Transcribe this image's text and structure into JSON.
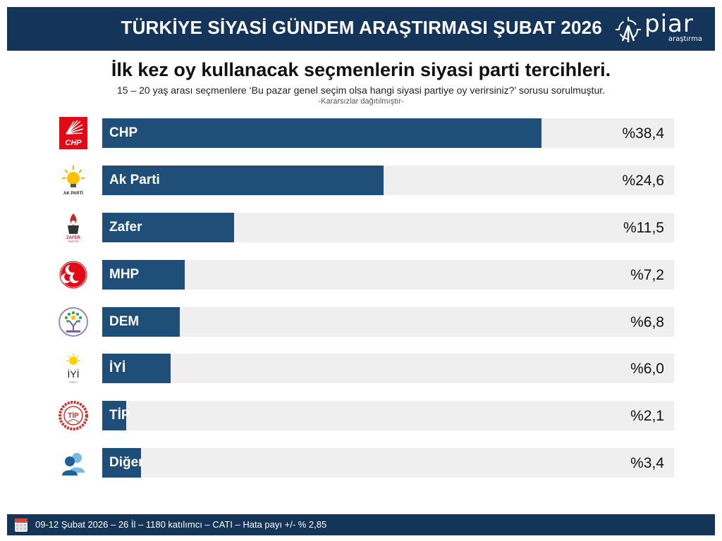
{
  "header": {
    "title": "TÜRKİYE SİYASİ GÜNDEM ARAŞTIRMASI ŞUBAT 2026",
    "logo_text": "piar",
    "logo_sub": "araştırma",
    "background": "#15345a"
  },
  "title": "İlk kez oy kullanacak seçmenlerin siyasi parti tercihleri.",
  "subtitle": "15 – 20 yaş arası seçmenlere ‘Bu pazar genel seçim olsa hangi siyasi partiye oy verirsiniz?’ sorusu sorulmuştur.",
  "note": "-Kararsızlar dağıtılmıştır-",
  "rows": [
    {
      "label": "CHP",
      "value_text": "%38,4",
      "value": 38.4,
      "logo": "chp-logo-icon"
    },
    {
      "label": "Ak Parti",
      "value_text": "%24,6",
      "value": 24.6,
      "logo": "ak-parti-logo-icon"
    },
    {
      "label": "Zafer",
      "value_text": "%11,5",
      "value": 11.5,
      "logo": "zafer-logo-icon"
    },
    {
      "label": "MHP",
      "value_text": "%7,2",
      "value": 7.2,
      "logo": "mhp-logo-icon"
    },
    {
      "label": "DEM",
      "value_text": "%6,8",
      "value": 6.8,
      "logo": "dem-logo-icon"
    },
    {
      "label": "İYİ",
      "value_text": "%6,0",
      "value": 6.0,
      "logo": "iyi-logo-icon"
    },
    {
      "label": "TİP",
      "value_text": "%2,1",
      "value": 2.1,
      "logo": "tip-logo-icon"
    },
    {
      "label": "Diğer",
      "value_text": "%3,4",
      "value": 3.4,
      "logo": "diger-people-icon"
    }
  ],
  "colors": {
    "bar": "#1f4e79",
    "track": "#efefef",
    "header": "#15345a"
  },
  "footer": {
    "text": "09-12 Şubat 2026 – 26 İl – 1180 katılımcı – CATI – Hata payı +/- % 2,85"
  },
  "chart_data": {
    "type": "bar",
    "orientation": "horizontal",
    "title": "İlk kez oy kullanacak seçmenlerin siyasi parti tercihleri.",
    "subtitle": "15 – 20 yaş arası seçmenlere ‘Bu pazar genel seçim olsa hangi siyasi partiye oy verirsiniz?’ sorusu sorulmuştur.",
    "annotation": "-Kararsızlar dağıtılmıştır-",
    "categories": [
      "CHP",
      "Ak Parti",
      "Zafer",
      "MHP",
      "DEM",
      "İYİ",
      "TİP",
      "Diğer"
    ],
    "values": [
      38.4,
      24.6,
      11.5,
      7.2,
      6.8,
      6.0,
      2.1,
      3.4
    ],
    "value_labels": [
      "%38,4",
      "%24,6",
      "%11,5",
      "%7,2",
      "%6,8",
      "%6,0",
      "%2,1",
      "%3,4"
    ],
    "unit": "%",
    "xlabel": "",
    "ylabel": "",
    "xlim": [
      0,
      50
    ],
    "grid": false,
    "legend": "none"
  }
}
